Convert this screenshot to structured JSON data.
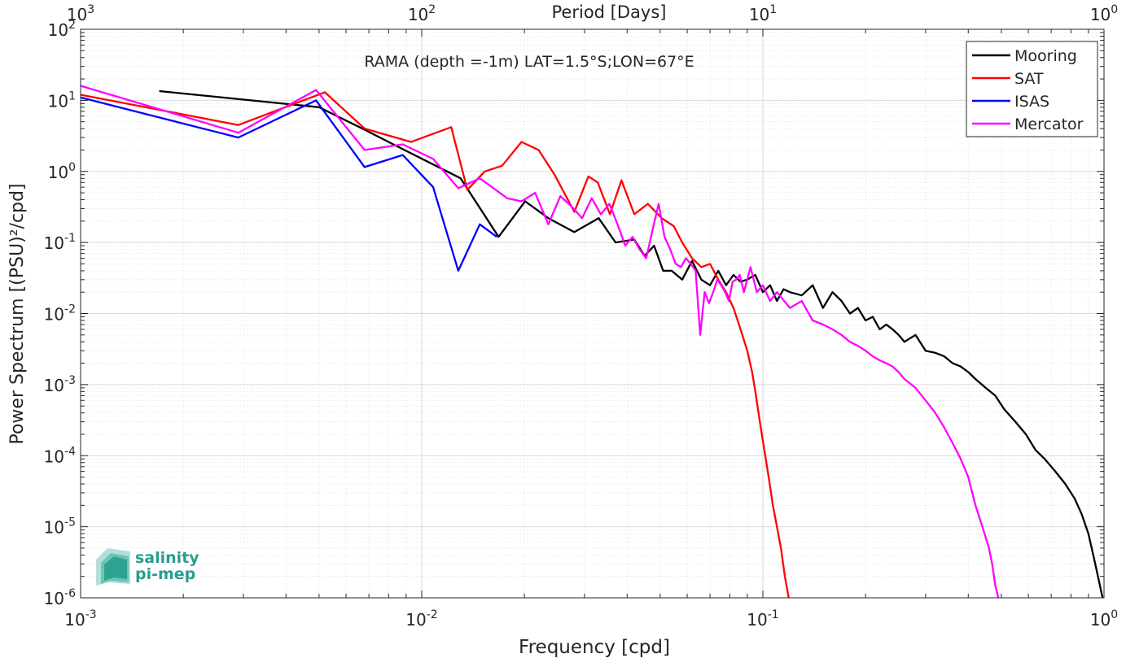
{
  "chart_data": {
    "type": "line",
    "title": "RAMA (depth =-1m) LAT=1.5°S;LON=67°E",
    "xlabel": "Frequency [cpd]",
    "ylabel": "Power Spectrum [(PSU)²/cpd]",
    "top_axis_label": "Period [Days]",
    "x_scale": "log",
    "y_scale": "log",
    "xlim": [
      0.001,
      1
    ],
    "ylim": [
      1e-06,
      100
    ],
    "grid": true,
    "legend_position": "top-right",
    "x_tick_labels": [
      {
        "base": "10",
        "exp": "-3"
      },
      {
        "base": "10",
        "exp": "-2"
      },
      {
        "base": "10",
        "exp": "-1"
      },
      {
        "base": "10",
        "exp": "0"
      }
    ],
    "top_tick_labels": [
      {
        "base": "10",
        "exp": "3"
      },
      {
        "base": "10",
        "exp": "2"
      },
      {
        "base": "10",
        "exp": "1"
      },
      {
        "base": "10",
        "exp": "0"
      }
    ],
    "y_tick_labels": [
      {
        "base": "10",
        "exp": "-6"
      },
      {
        "base": "10",
        "exp": "-5"
      },
      {
        "base": "10",
        "exp": "-4"
      },
      {
        "base": "10",
        "exp": "-3"
      },
      {
        "base": "10",
        "exp": "-2"
      },
      {
        "base": "10",
        "exp": "-1"
      },
      {
        "base": "10",
        "exp": "0"
      },
      {
        "base": "10",
        "exp": "1"
      },
      {
        "base": "10",
        "exp": "2"
      }
    ],
    "series": [
      {
        "name": "Mooring",
        "color": "#000000",
        "x": [
          0.0017,
          0.005,
          0.0067,
          0.0084,
          0.011,
          0.013,
          0.0168,
          0.0201,
          0.0235,
          0.028,
          0.033,
          0.037,
          0.042,
          0.045,
          0.048,
          0.051,
          0.054,
          0.058,
          0.062,
          0.066,
          0.07,
          0.074,
          0.078,
          0.082,
          0.086,
          0.09,
          0.095,
          0.1,
          0.105,
          0.11,
          0.115,
          0.12,
          0.13,
          0.14,
          0.15,
          0.16,
          0.17,
          0.18,
          0.19,
          0.2,
          0.21,
          0.22,
          0.23,
          0.24,
          0.25,
          0.26,
          0.28,
          0.3,
          0.32,
          0.34,
          0.36,
          0.38,
          0.4,
          0.42,
          0.45,
          0.48,
          0.51,
          0.55,
          0.59,
          0.63,
          0.67,
          0.72,
          0.77,
          0.82,
          0.86,
          0.9,
          0.93,
          0.96,
          0.99
        ],
        "y": [
          13.5,
          8,
          4,
          2.3,
          1.2,
          0.8,
          0.12,
          0.38,
          0.22,
          0.14,
          0.22,
          0.1,
          0.11,
          0.065,
          0.09,
          0.04,
          0.04,
          0.03,
          0.055,
          0.03,
          0.025,
          0.04,
          0.025,
          0.035,
          0.028,
          0.03,
          0.035,
          0.02,
          0.025,
          0.015,
          0.022,
          0.02,
          0.018,
          0.025,
          0.012,
          0.02,
          0.015,
          0.01,
          0.012,
          0.008,
          0.009,
          0.006,
          0.007,
          0.006,
          0.005,
          0.004,
          0.005,
          0.003,
          0.0028,
          0.0025,
          0.002,
          0.0018,
          0.0015,
          0.0012,
          0.0009,
          0.0007,
          0.00045,
          0.0003,
          0.0002,
          0.00012,
          9e-05,
          6e-05,
          4e-05,
          2.5e-05,
          1.5e-05,
          8e-06,
          4e-06,
          2e-06,
          1e-06
        ]
      },
      {
        "name": "SAT",
        "color": "#ff0000",
        "x": [
          0.001,
          0.0029,
          0.0052,
          0.0068,
          0.0093,
          0.0122,
          0.0136,
          0.0153,
          0.0172,
          0.0196,
          0.022,
          0.0245,
          0.028,
          0.0308,
          0.0328,
          0.0356,
          0.0385,
          0.042,
          0.046,
          0.0505,
          0.0548,
          0.058,
          0.062,
          0.066,
          0.07,
          0.074,
          0.078,
          0.082,
          0.086,
          0.09,
          0.093,
          0.095,
          0.098,
          0.101,
          0.104,
          0.107,
          0.11,
          0.113,
          0.116,
          0.119
        ],
        "y": [
          12,
          4.5,
          13,
          4,
          2.6,
          4.2,
          0.55,
          1,
          1.2,
          2.6,
          2,
          0.9,
          0.27,
          0.85,
          0.7,
          0.25,
          0.75,
          0.25,
          0.35,
          0.22,
          0.17,
          0.1,
          0.06,
          0.045,
          0.05,
          0.03,
          0.02,
          0.012,
          0.006,
          0.003,
          0.0015,
          0.0008,
          0.0003,
          0.00012,
          5e-05,
          2e-05,
          1e-05,
          5e-06,
          2e-06,
          1e-06
        ]
      },
      {
        "name": "ISAS",
        "color": "#0000ff",
        "x": [
          0.001,
          0.0029,
          0.0049,
          0.0068,
          0.0088,
          0.0108,
          0.0128,
          0.0148,
          0.0166
        ],
        "y": [
          11,
          3,
          10,
          1.15,
          1.7,
          0.6,
          0.04,
          0.18,
          0.12
        ]
      },
      {
        "name": "Mercator",
        "color": "#ff00ff",
        "x": [
          0.001,
          0.0029,
          0.0049,
          0.0068,
          0.0088,
          0.0108,
          0.0128,
          0.0148,
          0.0178,
          0.0196,
          0.0215,
          0.0235,
          0.0255,
          0.0275,
          0.0295,
          0.0315,
          0.0335,
          0.0355,
          0.0375,
          0.0395,
          0.0415,
          0.0435,
          0.0455,
          0.0475,
          0.0495,
          0.0515,
          0.0535,
          0.0555,
          0.0575,
          0.0595,
          0.0615,
          0.0635,
          0.0655,
          0.0675,
          0.0695,
          0.0715,
          0.0735,
          0.0755,
          0.0775,
          0.0795,
          0.0815,
          0.0835,
          0.0855,
          0.088,
          0.092,
          0.096,
          0.1,
          0.105,
          0.11,
          0.12,
          0.13,
          0.14,
          0.15,
          0.16,
          0.17,
          0.18,
          0.19,
          0.2,
          0.21,
          0.22,
          0.23,
          0.24,
          0.25,
          0.26,
          0.28,
          0.3,
          0.32,
          0.34,
          0.36,
          0.38,
          0.4,
          0.42,
          0.44,
          0.46,
          0.47,
          0.48,
          0.49
        ],
        "y": [
          16,
          3.5,
          14,
          2,
          2.4,
          1.5,
          0.58,
          0.8,
          0.42,
          0.38,
          0.5,
          0.18,
          0.45,
          0.32,
          0.22,
          0.42,
          0.25,
          0.35,
          0.18,
          0.09,
          0.12,
          0.08,
          0.06,
          0.15,
          0.35,
          0.12,
          0.08,
          0.05,
          0.045,
          0.06,
          0.05,
          0.04,
          0.005,
          0.02,
          0.014,
          0.02,
          0.03,
          0.025,
          0.02,
          0.015,
          0.028,
          0.03,
          0.035,
          0.02,
          0.045,
          0.02,
          0.025,
          0.015,
          0.02,
          0.012,
          0.015,
          0.008,
          0.007,
          0.006,
          0.005,
          0.004,
          0.0035,
          0.003,
          0.0025,
          0.0022,
          0.002,
          0.0018,
          0.0015,
          0.0012,
          0.0009,
          0.0006,
          0.0004,
          0.00025,
          0.00015,
          9e-05,
          5e-05,
          2e-05,
          1e-05,
          5e-06,
          3e-06,
          1.5e-06,
          1e-06
        ]
      }
    ]
  },
  "logo": {
    "line1": "salinity",
    "line2": "pi-mep"
  }
}
